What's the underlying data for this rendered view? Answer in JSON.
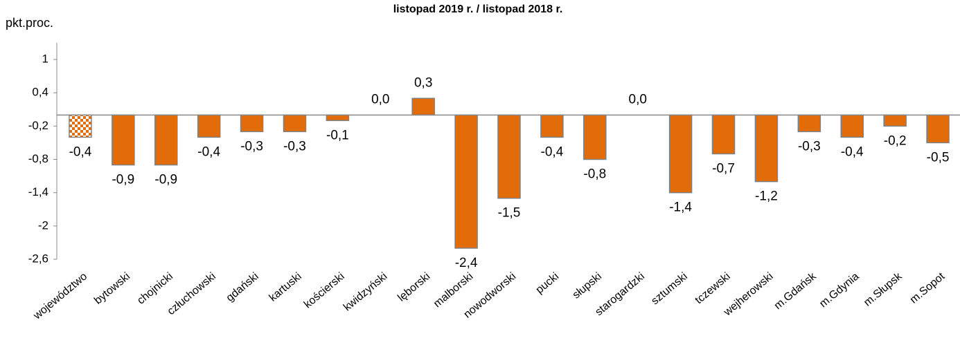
{
  "chart_data": {
    "type": "bar",
    "title": "listopad 2019 r. / listopad 2018 r.",
    "y_axis_label": "pkt.proc.",
    "categories": [
      "województwo",
      "bytowski",
      "chojnicki",
      "człuchowski",
      "gdański",
      "kartuski",
      "kościerski",
      "kwidzyński",
      "lęborski",
      "malborski",
      "nowodworski",
      "pucki",
      "słupski",
      "starogardzki",
      "sztumski",
      "tczewski",
      "wejherowski",
      "m.Gdańsk",
      "m.Gdynia",
      "m.Słupsk",
      "m.Sopot"
    ],
    "values": [
      -0.4,
      -0.9,
      -0.9,
      -0.4,
      -0.3,
      -0.3,
      -0.1,
      0.0,
      0.3,
      -2.4,
      -1.5,
      -0.4,
      -0.8,
      0.0,
      -1.4,
      -0.7,
      -1.2,
      -0.3,
      -0.4,
      -0.2,
      -0.5
    ],
    "value_labels": [
      "-0,4",
      "-0,9",
      "-0,9",
      "-0,4",
      "-0,3",
      "-0,3",
      "-0,1",
      "0,0",
      "0,3",
      "-2,4",
      "-1,5",
      "-0,4",
      "-0,8",
      "0,0",
      "-1,4",
      "-0,7",
      "-1,2",
      "-0,3",
      "-0,4",
      "-0,2",
      "-0,5"
    ],
    "color": "#e36c0a",
    "bar_styles": [
      "checker",
      "solid",
      "solid",
      "solid",
      "solid",
      "solid",
      "solid",
      "solid",
      "solid",
      "solid",
      "solid",
      "solid",
      "solid",
      "solid",
      "solid",
      "solid",
      "solid",
      "solid",
      "solid",
      "solid",
      "solid"
    ],
    "ylim": [
      -2.6,
      1.2
    ],
    "yticks": [
      {
        "value": -2.6,
        "label": "-2,6"
      },
      -2,
      {
        "value": -1.4,
        "label": "-1,4"
      },
      {
        "value": -0.8,
        "label": "-0,8"
      },
      {
        "value": -0.2,
        "label": "-0,2"
      },
      {
        "value": 0.4,
        "label": "0,4"
      },
      1
    ],
    "grid": false
  }
}
